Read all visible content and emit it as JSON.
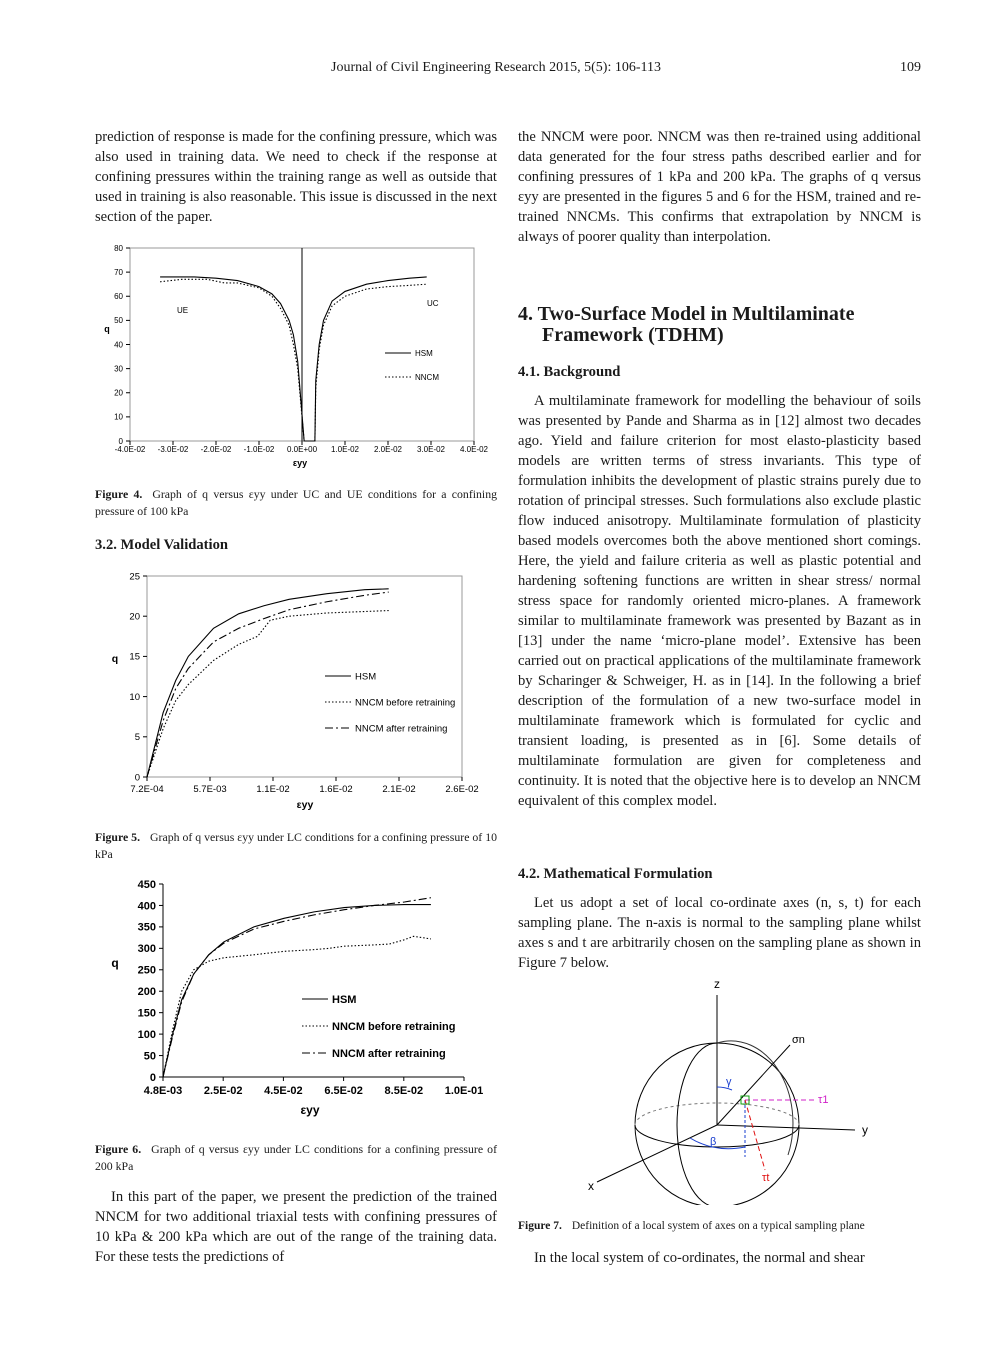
{
  "header": {
    "journal": "Journal of Civil Engineering Research 2015, 5(5): 106-113",
    "page": "109"
  },
  "left_column": {
    "paragraph_1": "prediction of response is made for the confining pressure, which was also used in training data. We need to check if the response at confining pressures within the training range as well as outside that used in training is also reasonable. This issue is discussed in the next section of the paper.",
    "figure_4_caption": {
      "label": "Figure 4.",
      "text": "Graph of q versus εyy under UC and UE conditions for a confining pressure of 100 kPa"
    },
    "section_heading": "3.2. Model Validation",
    "figure_5_caption": {
      "label": "Figure 5.",
      "text": "Graph of q versus εyy under LC conditions for a confining pressure of 10 kPa"
    },
    "figure_6_caption": {
      "label": "Figure 6.",
      "text": "Graph of q versus εyy under LC conditions for a confining pressure of 200 kPa"
    },
    "paragraph_2": "In this part of the paper, we present the prediction of the trained NNCM for two additional triaxial tests with confining pressures of 10 kPa & 200 kPa which are out of the range of the training data. For these tests the predictions of"
  },
  "right_column": {
    "paragraph_1": "the NNCM were poor. NNCM was then re-trained using additional data generated for the four stress paths described earlier and for confining pressures of 1 kPa and 200 kPa. The graphs of q versus εyy are presented in the figures 5 and 6 for the HSM, trained and re-trained NNCMs. This confirms that extrapolation by NNCM is always of poorer quality than interpolation.",
    "section_heading": "4. Two-Surface Model in Multilaminate Framework (TDHM)",
    "subsection_1": "4.1. Background",
    "paragraph_2": "A multilaminate framework for modelling the behaviour of soils was presented by Pande and Sharma as in [12] almost two decades ago. Yield and failure criterion for most elasto-plasticity based models are written terms of stress invariants. This type of formulation inhibits the development of plastic strains purely due to rotation of principal stresses. Such formulations also exclude plastic flow induced anisotropy. Multilaminate formulation of plasticity based models overcomes both the above mentioned short comings. Here, the yield and failure criteria as well as plastic potential and hardening softening functions are written in shear stress/ normal stress space for randomly oriented micro-planes. A framework similar to multilaminate framework was presented by Bazant as in [13] under the name ‘micro-plane model’. Extensive has been carried out on practical applications of the multilaminate framework by Scharinger & Schweiger, H. as in [14]. In the following a brief description of the formulation of a new two-surface model in multilaminate framework which is formulated for cyclic and transient loading, is presented as in [6]. Some details of multilaminate formulation are given for completeness and continuity. It is noted that the objective here is to develop an NNCM equivalent of this complex model.",
    "subsection_2": "4.2. Mathematical Formulation",
    "paragraph_3": "Let us adopt a set of local co-ordinate axes (n, s, t) for each sampling plane. The n-axis is normal to the sampling plane whilst axes s and t are arbitrarily chosen on the sampling plane as shown in Figure 7 below.",
    "figure_7": {
      "labels": {
        "z": "z",
        "y": "y",
        "x": "x",
        "sigma_n": "σn",
        "tau_1": "τ1",
        "tau_t": "τt",
        "beta": "β",
        "gamma": "γ"
      },
      "caption": {
        "label": "Figure 7.",
        "text": "Definition of a local system of axes on a typical sampling plane"
      }
    },
    "paragraph_4": "In the local system of co-ordinates, the normal and shear"
  },
  "chart_data": [
    {
      "type": "line",
      "x_label": "εyy",
      "y_label": "q",
      "frame": true,
      "legend": "right",
      "annotations": [
        "UE",
        "UC"
      ],
      "xlim": [
        -0.04,
        0.04
      ],
      "xticks": [
        {
          "value": -0.04,
          "label": "-4.0E-02"
        },
        {
          "value": -0.03,
          "label": "-3.0E-02"
        },
        {
          "value": -0.02,
          "label": "-2.0E-02"
        },
        {
          "value": -0.01,
          "label": "-1.0E-02"
        },
        {
          "value": 0,
          "label": "0.0E+00"
        },
        {
          "value": 0.01,
          "label": "1.0E-02"
        },
        {
          "value": 0.02,
          "label": "2.0E-02"
        },
        {
          "value": 0.03,
          "label": "3.0E-02"
        },
        {
          "value": 0.04,
          "label": "4.0E-02"
        }
      ],
      "ylim": [
        0,
        80
      ],
      "yticks": [
        0,
        10,
        20,
        30,
        40,
        50,
        60,
        70,
        80
      ],
      "series": [
        {
          "name": "HSM",
          "color": "#000000",
          "dash": "solid",
          "x": [
            -0.033,
            -0.025,
            -0.02,
            -0.015,
            -0.01,
            -0.007,
            -0.005,
            -0.003,
            -0.002,
            -0.001,
            0.0005,
            0.003,
            0.0032,
            0.004,
            0.005,
            0.007,
            0.01,
            0.015,
            0.02,
            0.025,
            0.029
          ],
          "values": [
            68,
            68,
            67.5,
            66.5,
            64,
            61,
            57,
            50,
            44,
            33,
            0,
            0,
            25,
            40,
            50,
            58,
            62,
            65,
            66.5,
            67.5,
            68
          ]
        },
        {
          "name": "NNCM",
          "color": "#000000",
          "dash": "dotted",
          "x": [
            -0.033,
            -0.028,
            -0.022,
            -0.018,
            -0.015,
            -0.01,
            -0.007,
            -0.005,
            -0.003,
            -0.002,
            -0.001,
            0.0005,
            0.003,
            0.0032,
            0.004,
            0.005,
            0.007,
            0.01,
            0.015,
            0.02,
            0.025,
            0.029
          ],
          "values": [
            66,
            67,
            67,
            65.5,
            65.5,
            63.5,
            60,
            55,
            48,
            40,
            30,
            0,
            0,
            22,
            38,
            48,
            56,
            60,
            63,
            64,
            64.5,
            65
          ]
        }
      ]
    },
    {
      "type": "line",
      "x_label": "εyy",
      "y_label": "q",
      "frame": true,
      "legend": "right",
      "xlim": [
        0.00072,
        0.02572
      ],
      "xticks": [
        {
          "value": 0.00072,
          "label": "7.2E-04"
        },
        {
          "value": 0.00572,
          "label": "5.7E-03"
        },
        {
          "value": 0.01072,
          "label": "1.1E-02"
        },
        {
          "value": 0.01572,
          "label": "1.6E-02"
        },
        {
          "value": 0.02072,
          "label": "2.1E-02"
        },
        {
          "value": 0.02572,
          "label": "2.6E-02"
        }
      ],
      "ylim": [
        0,
        25
      ],
      "yticks": [
        0,
        5,
        10,
        15,
        20,
        25
      ],
      "series": [
        {
          "name": "HSM",
          "color": "#000000",
          "dash": "solid",
          "x": [
            0.00072,
            0.002,
            0.003,
            0.004,
            0.006,
            0.008,
            0.01,
            0.012,
            0.015,
            0.018,
            0.0199
          ],
          "values": [
            0,
            8,
            12,
            15,
            18.5,
            20.3,
            21.3,
            22.1,
            22.8,
            23.3,
            23.4
          ]
        },
        {
          "name": "NNCM before retraining",
          "color": "#000000",
          "dash": "dotted",
          "x": [
            0.00072,
            0.002,
            0.003,
            0.004,
            0.006,
            0.008,
            0.0095,
            0.0105,
            0.012,
            0.015,
            0.0199
          ],
          "values": [
            0,
            6,
            9.5,
            11.5,
            14.5,
            16.5,
            17.5,
            19.5,
            20,
            20.4,
            20.7
          ]
        },
        {
          "name": "NNCM after retraining",
          "color": "#000000",
          "dash": "dash-dot",
          "x": [
            0.00072,
            0.002,
            0.003,
            0.004,
            0.006,
            0.008,
            0.01,
            0.012,
            0.015,
            0.018,
            0.0199
          ],
          "values": [
            0,
            7,
            11,
            13.5,
            16.8,
            18.5,
            19.7,
            20.8,
            21.8,
            22.6,
            23
          ]
        }
      ]
    },
    {
      "type": "line",
      "x_label": "εyy",
      "y_label": "q",
      "frame": false,
      "legend": "right",
      "xlim": [
        0.0048,
        0.1048
      ],
      "xticks": [
        {
          "value": 0.0048,
          "label": "4.8E-03"
        },
        {
          "value": 0.0248,
          "label": "2.5E-02"
        },
        {
          "value": 0.0448,
          "label": "4.5E-02"
        },
        {
          "value": 0.0648,
          "label": "6.5E-02"
        },
        {
          "value": 0.0848,
          "label": "8.5E-02"
        },
        {
          "value": 0.1048,
          "label": "1.0E-01"
        }
      ],
      "ylim": [
        0,
        450
      ],
      "yticks": [
        0,
        50,
        100,
        150,
        200,
        250,
        300,
        350,
        400,
        450
      ],
      "series": [
        {
          "name": "HSM",
          "color": "#000000",
          "dash": "solid",
          "x": [
            0.0048,
            0.008,
            0.011,
            0.015,
            0.02,
            0.025,
            0.035,
            0.045,
            0.055,
            0.065,
            0.075,
            0.085,
            0.0938
          ],
          "values": [
            0,
            100,
            180,
            240,
            285,
            315,
            350,
            370,
            385,
            395,
            400,
            402,
            402
          ]
        },
        {
          "name": "NNCM before retraining",
          "color": "#000000",
          "dash": "dotted",
          "x": [
            0.0048,
            0.008,
            0.011,
            0.015,
            0.02,
            0.025,
            0.035,
            0.045,
            0.055,
            0.06,
            0.065,
            0.075,
            0.08,
            0.085,
            0.088,
            0.0938
          ],
          "values": [
            0,
            110,
            200,
            250,
            270,
            278,
            285,
            293,
            297,
            300,
            305,
            308,
            310,
            320,
            328,
            322
          ]
        },
        {
          "name": "NNCM after retraining",
          "color": "#000000",
          "dash": "dash-dot",
          "x": [
            0.0048,
            0.008,
            0.011,
            0.015,
            0.02,
            0.025,
            0.035,
            0.045,
            0.055,
            0.065,
            0.075,
            0.085,
            0.0938
          ],
          "values": [
            0,
            95,
            175,
            240,
            285,
            312,
            345,
            363,
            378,
            390,
            400,
            408,
            418
          ]
        }
      ]
    }
  ]
}
